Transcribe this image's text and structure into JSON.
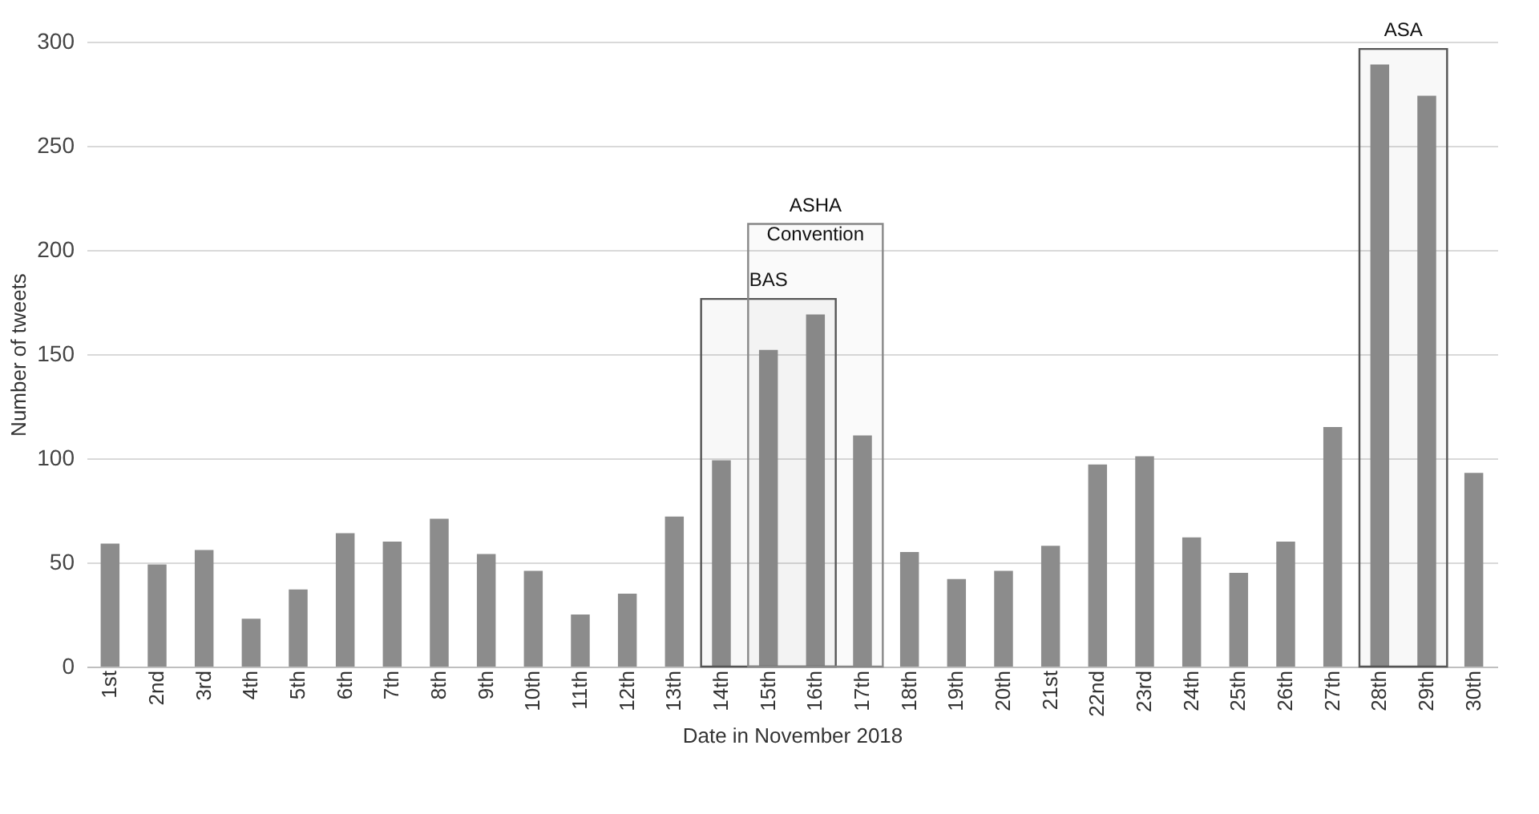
{
  "chart_data": {
    "type": "bar",
    "xlabel": "Date in November 2018",
    "ylabel": "Number of tweets",
    "categories": [
      "1st",
      "2nd",
      "3rd",
      "4th",
      "5th",
      "6th",
      "7th",
      "8th",
      "9th",
      "10th",
      "11th",
      "12th",
      "13th",
      "14th",
      "15th",
      "16th",
      "17th",
      "18th",
      "19th",
      "20th",
      "21st",
      "22nd",
      "23rd",
      "24th",
      "25th",
      "26th",
      "27th",
      "28th",
      "29th",
      "30th"
    ],
    "values": [
      59,
      49,
      56,
      23,
      37,
      64,
      60,
      71,
      54,
      46,
      25,
      35,
      72,
      99,
      152,
      169,
      111,
      55,
      42,
      46,
      58,
      97,
      101,
      62,
      45,
      60,
      115,
      289,
      274,
      93
    ],
    "color": "#8c8c8c",
    "ylim": [
      0,
      300
    ],
    "yticks": [
      0,
      50,
      100,
      150,
      200,
      250,
      300
    ],
    "grid": "y",
    "bands": [
      {
        "axis": "x",
        "from": "14th",
        "to": "16th",
        "label": "BAS",
        "color": "#555555"
      },
      {
        "axis": "x",
        "from": "15th",
        "to": "17th",
        "label": "ASHA Convention",
        "color": "#888888"
      },
      {
        "axis": "x",
        "from": "28th",
        "to": "29th",
        "label": "ASA",
        "color": "#555555"
      }
    ]
  }
}
